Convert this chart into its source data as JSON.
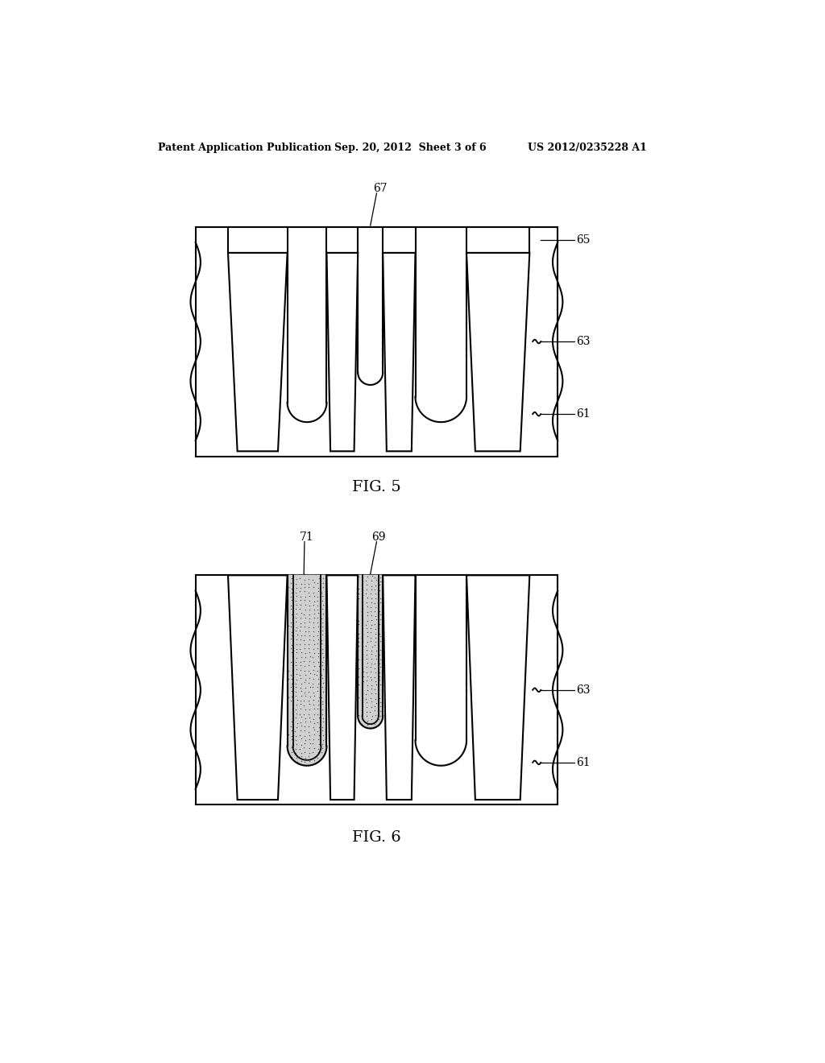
{
  "bg_color": "#ffffff",
  "header_left": "Patent Application Publication",
  "header_mid": "Sep. 20, 2012  Sheet 3 of 6",
  "header_right": "US 2012/0235228 A1",
  "fig5_label": "FIG. 5",
  "fig6_label": "FIG. 6",
  "line_color": "#000000",
  "lw": 1.5
}
